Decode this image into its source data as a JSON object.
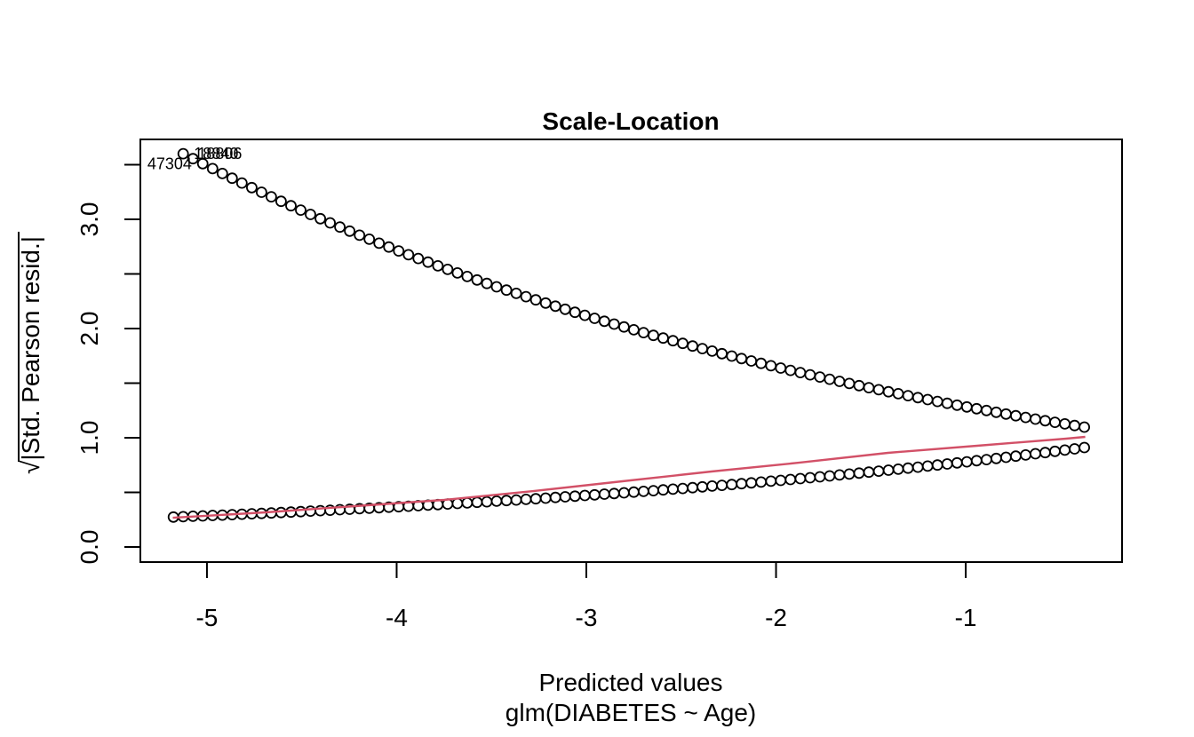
{
  "title": "Scale-Location",
  "x_axis": {
    "label_line1": "Predicted values",
    "label_line2": "glm(DIABETES ~ Age)",
    "tick_values": [
      -5,
      -4,
      -3,
      -2,
      -1
    ],
    "tick_labels": [
      "-5",
      "-4",
      "-3",
      "-2",
      "-1"
    ],
    "range": [
      -5.351,
      -0.176
    ]
  },
  "y_axis": {
    "sqrt_symbol": "√",
    "label_text": "|Std. Pearson resid.|",
    "tick_values": [
      0,
      1,
      2,
      3
    ],
    "tick_labels": [
      "0.0",
      "1.0",
      "2.0",
      "3.0"
    ],
    "minor_tick_values": [
      0.5,
      1.5,
      2.5,
      3.5
    ],
    "range": [
      -0.138,
      3.732
    ]
  },
  "colors": {
    "points": "#000000",
    "smooth_line": "#d25067",
    "box": "#000000",
    "text": "#000000",
    "background": "#ffffff"
  },
  "chart_data": {
    "type": "scatter",
    "title": "Scale-Location",
    "xlabel": "Predicted values  glm(DIABETES ~ Age)",
    "ylabel": "sqrt(|Std. Pearson resid.|)",
    "xlim": [
      -5.351,
      -0.176
    ],
    "ylim": [
      -0.138,
      3.732
    ],
    "grid": false,
    "legend_position": "none",
    "x_grid": {
      "start": -5.177,
      "step": 0.05164,
      "count": 94
    },
    "series": [
      {
        "name": "positive residual branch (DIABETES = 1)",
        "marker": "open-circle",
        "exp_sign": -1,
        "skip_first": 1,
        "sample_points": [
          [
            -5.12,
            3.59
          ],
          [
            -4.5,
            3.08
          ],
          [
            -4.0,
            2.72
          ],
          [
            -3.5,
            2.4
          ],
          [
            -3.0,
            2.12
          ],
          [
            -2.5,
            1.87
          ],
          [
            -2.0,
            1.65
          ],
          [
            -1.5,
            1.45
          ],
          [
            -1.0,
            1.28
          ],
          [
            -0.5,
            1.13
          ],
          [
            -0.37,
            1.1
          ]
        ]
      },
      {
        "name": "negative residual branch (DIABETES = 0)",
        "marker": "open-circle",
        "exp_sign": 1,
        "skip_first": 0,
        "sample_points": [
          [
            -5.18,
            0.27
          ],
          [
            -4.5,
            0.32
          ],
          [
            -4.0,
            0.37
          ],
          [
            -3.5,
            0.42
          ],
          [
            -3.0,
            0.47
          ],
          [
            -2.5,
            0.54
          ],
          [
            -2.0,
            0.61
          ],
          [
            -1.5,
            0.69
          ],
          [
            -1.0,
            0.78
          ],
          [
            -0.5,
            0.88
          ],
          [
            -0.37,
            0.91
          ]
        ]
      }
    ],
    "smooth_line": {
      "color": "#d25067",
      "points": [
        [
          -5.18,
          0.268
        ],
        [
          -4.69,
          0.317
        ],
        [
          -4.22,
          0.374
        ],
        [
          -3.75,
          0.431
        ],
        [
          -3.28,
          0.512
        ],
        [
          -2.81,
          0.602
        ],
        [
          -2.34,
          0.691
        ],
        [
          -1.88,
          0.772
        ],
        [
          -1.41,
          0.862
        ],
        [
          -0.94,
          0.927
        ],
        [
          -0.47,
          0.992
        ],
        [
          -0.37,
          1.008
        ]
      ]
    },
    "labeled_points": [
      {
        "label": "47304",
        "x": -5.019,
        "y": 3.508,
        "side": "left"
      },
      {
        "label": "18840",
        "x": -5.125,
        "y": 3.601,
        "side": "right",
        "overlap_offset": 0
      },
      {
        "label": "18806",
        "x": -5.125,
        "y": 3.601,
        "side": "right",
        "overlap_offset": 4
      }
    ]
  }
}
